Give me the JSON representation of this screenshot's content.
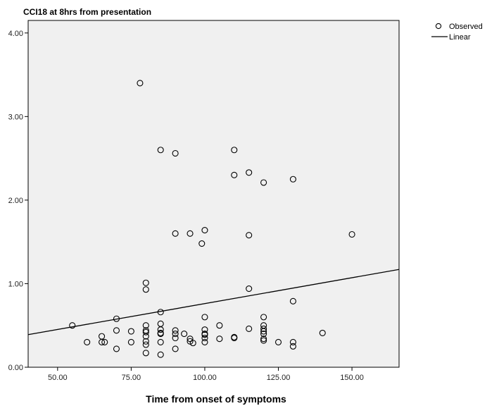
{
  "chart_data": {
    "type": "scatter",
    "title": "CCI18 at 8hrs from presentation",
    "xlabel": "Time from onset of symptoms",
    "ylabel": "",
    "xlim": [
      40,
      166
    ],
    "ylim": [
      0,
      4.15
    ],
    "x_ticks": [
      50,
      75,
      100,
      125,
      150
    ],
    "x_tick_labels": [
      "50.00",
      "75.00",
      "100.00",
      "125.00",
      "150.00"
    ],
    "y_ticks": [
      0,
      1,
      2,
      3,
      4
    ],
    "y_tick_labels": [
      "0.00",
      "1.00",
      "2.00",
      "3.00",
      "4.00"
    ],
    "grid": false,
    "legend_position": "top-right, outside plot",
    "colors": {
      "plot_background": "#f0f0f0",
      "marker": "#000000",
      "line": "#000000"
    },
    "series": [
      {
        "name": "Observed",
        "kind": "points",
        "points": [
          [
            55,
            0.5
          ],
          [
            60,
            0.3
          ],
          [
            65,
            0.37
          ],
          [
            65,
            0.3
          ],
          [
            66,
            0.3
          ],
          [
            70,
            0.58
          ],
          [
            70,
            0.44
          ],
          [
            70,
            0.22
          ],
          [
            75,
            0.43
          ],
          [
            75,
            0.3
          ],
          [
            78,
            3.4
          ],
          [
            80,
            1.01
          ],
          [
            80,
            0.93
          ],
          [
            80,
            0.5
          ],
          [
            80,
            0.44
          ],
          [
            80,
            0.42
          ],
          [
            80,
            0.37
          ],
          [
            80,
            0.31
          ],
          [
            80,
            0.27
          ],
          [
            80,
            0.17
          ],
          [
            85,
            2.6
          ],
          [
            85,
            0.66
          ],
          [
            85,
            0.52
          ],
          [
            85,
            0.45
          ],
          [
            85,
            0.41
          ],
          [
            85,
            0.4
          ],
          [
            85,
            0.3
          ],
          [
            85,
            0.15
          ],
          [
            90,
            2.56
          ],
          [
            90,
            1.6
          ],
          [
            90,
            0.44
          ],
          [
            90,
            0.4
          ],
          [
            90,
            0.35
          ],
          [
            90,
            0.22
          ],
          [
            93,
            0.4
          ],
          [
            95,
            1.6
          ],
          [
            95,
            0.34
          ],
          [
            95,
            0.31
          ],
          [
            96,
            0.29
          ],
          [
            99,
            1.48
          ],
          [
            100,
            1.64
          ],
          [
            100,
            0.6
          ],
          [
            100,
            0.45
          ],
          [
            100,
            0.4
          ],
          [
            100,
            0.39
          ],
          [
            100,
            0.35
          ],
          [
            100,
            0.3
          ],
          [
            105,
            0.5
          ],
          [
            105,
            0.34
          ],
          [
            110,
            2.6
          ],
          [
            110,
            2.3
          ],
          [
            110,
            0.36
          ],
          [
            110,
            0.35
          ],
          [
            115,
            2.33
          ],
          [
            115,
            1.58
          ],
          [
            115,
            0.94
          ],
          [
            115,
            0.46
          ],
          [
            120,
            2.21
          ],
          [
            120,
            0.6
          ],
          [
            120,
            0.5
          ],
          [
            120,
            0.46
          ],
          [
            120,
            0.43
          ],
          [
            120,
            0.4
          ],
          [
            120,
            0.34
          ],
          [
            120,
            0.32
          ],
          [
            125,
            0.3
          ],
          [
            130,
            2.25
          ],
          [
            130,
            0.79
          ],
          [
            130,
            0.3
          ],
          [
            130,
            0.25
          ],
          [
            140,
            0.41
          ],
          [
            150,
            1.59
          ]
        ]
      },
      {
        "name": "Linear",
        "kind": "line",
        "line": [
          [
            40,
            0.39
          ],
          [
            166,
            1.17
          ]
        ]
      }
    ]
  }
}
